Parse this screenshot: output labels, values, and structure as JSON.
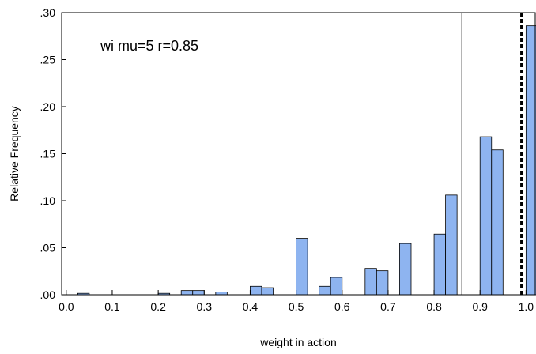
{
  "chart_data": {
    "type": "bar",
    "title": "",
    "xlabel": "weight in action",
    "ylabel": "Relative Frequency",
    "annotation": "wi mu=5 r=0.85",
    "xlim": [
      -0.01,
      1.02
    ],
    "ylim": [
      0,
      0.3
    ],
    "bin_width": 0.025,
    "x_ticks": [
      {
        "value": 0.0,
        "label": "0.0"
      },
      {
        "value": 0.1,
        "label": "0.1"
      },
      {
        "value": 0.2,
        "label": "0.2"
      },
      {
        "value": 0.3,
        "label": "0.3"
      },
      {
        "value": 0.4,
        "label": "0.4"
      },
      {
        "value": 0.5,
        "label": "0.5"
      },
      {
        "value": 0.6,
        "label": "0.6"
      },
      {
        "value": 0.7,
        "label": "0.7"
      },
      {
        "value": 0.8,
        "label": "0.8"
      },
      {
        "value": 0.9,
        "label": "0.9"
      },
      {
        "value": 1.0,
        "label": "1.0"
      }
    ],
    "y_ticks": [
      {
        "value": 0.0,
        "label": ".00"
      },
      {
        "value": 0.05,
        "label": ".05"
      },
      {
        "value": 0.1,
        "label": ".10"
      },
      {
        "value": 0.15,
        "label": ".15"
      },
      {
        "value": 0.2,
        "label": ".20"
      },
      {
        "value": 0.25,
        "label": ".25"
      },
      {
        "value": 0.3,
        "label": ".30"
      }
    ],
    "bins": [
      {
        "x0": 0.025,
        "value": 0.0015
      },
      {
        "x0": 0.2,
        "value": 0.0015
      },
      {
        "x0": 0.25,
        "value": 0.0045
      },
      {
        "x0": 0.275,
        "value": 0.0045
      },
      {
        "x0": 0.325,
        "value": 0.003
      },
      {
        "x0": 0.4,
        "value": 0.009
      },
      {
        "x0": 0.425,
        "value": 0.0075
      },
      {
        "x0": 0.5,
        "value": 0.06
      },
      {
        "x0": 0.55,
        "value": 0.009
      },
      {
        "x0": 0.575,
        "value": 0.0185
      },
      {
        "x0": 0.65,
        "value": 0.028
      },
      {
        "x0": 0.675,
        "value": 0.0255
      },
      {
        "x0": 0.725,
        "value": 0.0545
      },
      {
        "x0": 0.8,
        "value": 0.0645
      },
      {
        "x0": 0.825,
        "value": 0.106
      },
      {
        "x0": 0.9,
        "value": 0.168
      },
      {
        "x0": 0.925,
        "value": 0.154
      },
      {
        "x0": 1.0,
        "value": 0.286
      }
    ],
    "reference_lines": [
      {
        "x": 0.86,
        "style": "solid",
        "color": "#777777"
      },
      {
        "x": 0.99,
        "style": "dashed",
        "color": "#000000"
      }
    ],
    "bar_color": "#8eb4f0",
    "bar_edge_color": "#000000",
    "grid": false,
    "legend": "none"
  }
}
